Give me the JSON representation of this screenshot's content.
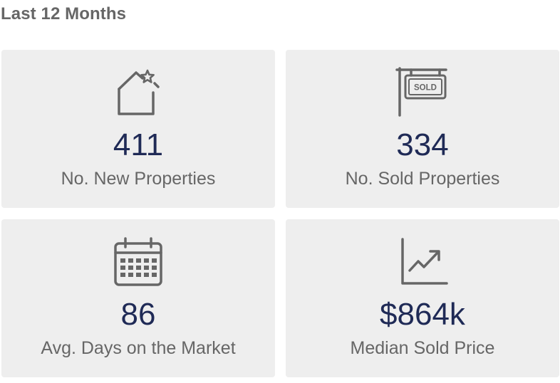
{
  "section": {
    "title": "Last 12 Months"
  },
  "colors": {
    "value": "#1f2a56",
    "label": "#666666",
    "card_background": "#eeeeee",
    "icon": "#666666"
  },
  "stats": [
    {
      "icon": "house-star-icon",
      "value": "411",
      "label": "No. New Properties"
    },
    {
      "icon": "sold-sign-icon",
      "value": "334",
      "label": "No. Sold Properties",
      "icon_text": "SOLD"
    },
    {
      "icon": "calendar-icon",
      "value": "86",
      "label": "Avg. Days on the Market"
    },
    {
      "icon": "trend-chart-icon",
      "value": "$864k",
      "label": "Median Sold Price"
    }
  ]
}
